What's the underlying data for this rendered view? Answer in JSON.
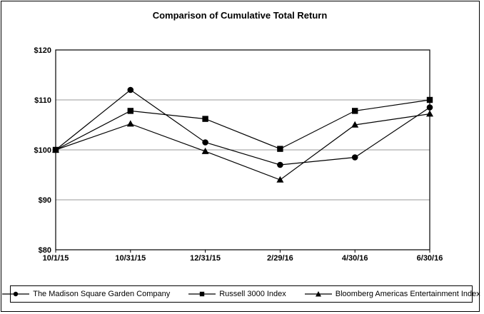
{
  "figure": {
    "title": "Comparison of Cumulative Total Return"
  },
  "chart_data": {
    "type": "line",
    "title": "Comparison of Cumulative Total Return",
    "x_categories": [
      "10/1/15",
      "10/31/15",
      "12/31/15",
      "2/29/16",
      "4/30/16",
      "6/30/16"
    ],
    "xlabel": "",
    "ylabel": "",
    "ylim": [
      80,
      120
    ],
    "y_ticks": [
      {
        "label": "$80",
        "value": 80
      },
      {
        "label": "$90",
        "value": 90
      },
      {
        "label": "$100",
        "value": 100
      },
      {
        "label": "$110",
        "value": 110
      },
      {
        "label": "$120",
        "value": 120
      }
    ],
    "grid": "horizontal",
    "grid_values": [
      90,
      100,
      110
    ],
    "gridline_color": "#999999",
    "axis_color": "#000000",
    "series_color": "#000000",
    "legend_position": "bottom",
    "series": [
      {
        "name": "The Madison Square Garden Company",
        "marker": "circle-icon",
        "values": [
          100,
          112,
          101.5,
          97,
          98.5,
          108.5
        ]
      },
      {
        "name": "Russell 3000 Index",
        "marker": "square-icon",
        "values": [
          100,
          107.8,
          106.2,
          100.2,
          107.8,
          110
        ]
      },
      {
        "name": "Bloomberg Americas Entertainment Index",
        "marker": "triangle-icon",
        "values": [
          100,
          105.2,
          99.7,
          94,
          105,
          107.2
        ]
      }
    ]
  }
}
